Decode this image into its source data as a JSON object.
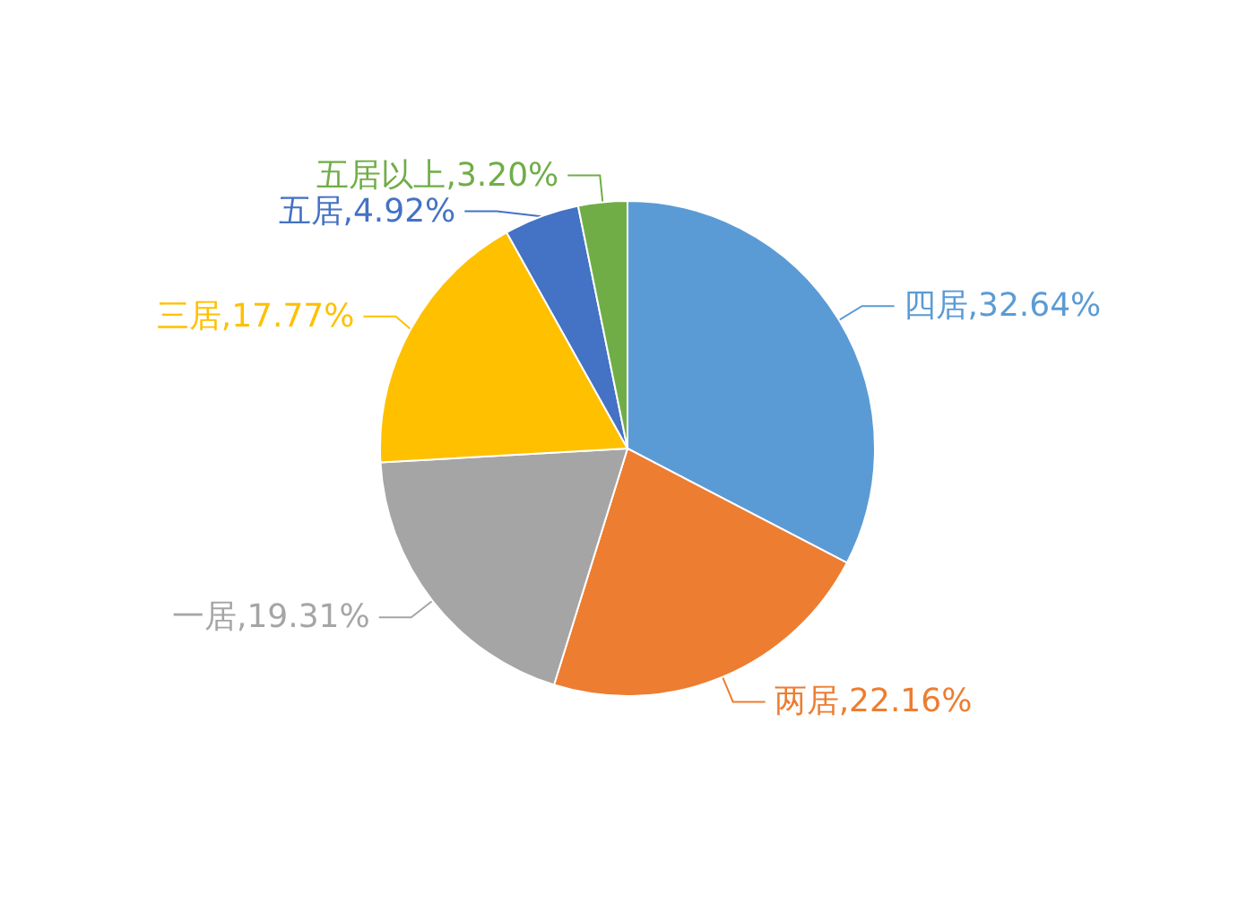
{
  "chart_data": {
    "type": "pie",
    "categories": [
      "四居",
      "两居",
      "一居",
      "三居",
      "五居",
      "五居以上"
    ],
    "values": [
      32.64,
      22.16,
      19.31,
      17.77,
      4.92,
      3.2
    ],
    "value_labels": [
      "32.64%",
      "22.16%",
      "19.31%",
      "17.77%",
      "4.92%",
      "3.20%"
    ],
    "colors": [
      "#5b9bd5",
      "#ed7d31",
      "#a5a5a5",
      "#ffc000",
      "#4472c4",
      "#70ad47"
    ],
    "legend": false
  }
}
